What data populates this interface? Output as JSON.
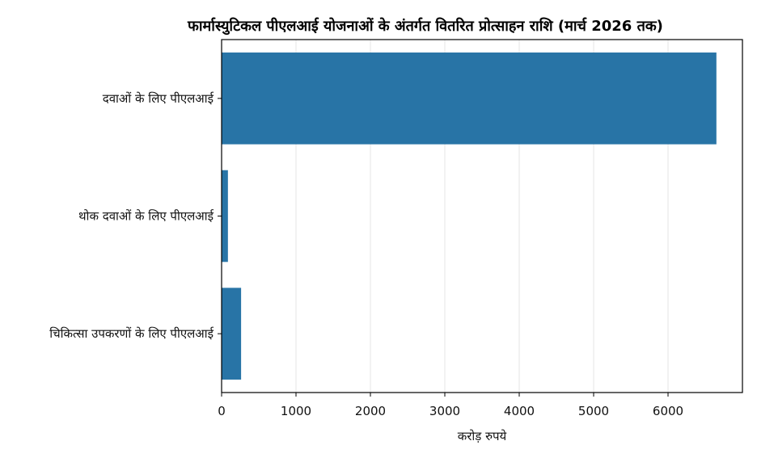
{
  "chart_data": {
    "type": "bar",
    "orientation": "horizontal",
    "title": "फार्मास्युटिकल पीएलआई योजनाओं के अंतर्गत वितरित प्रोत्साहन राशि (मार्च 2026 तक)",
    "xlabel": "करोड़ रुपये",
    "ylabel": "",
    "categories": [
      "दवाओं के लिए पीएलआई",
      "थोक दवाओं के लिए पीएलआई",
      "चिकित्सा उपकरणों के लिए पीएलआई"
    ],
    "values": [
      6650,
      85,
      262
    ],
    "xlim": [
      0,
      7000
    ],
    "xticks": [
      0,
      1000,
      2000,
      3000,
      4000,
      5000,
      6000
    ],
    "grid": "x",
    "bar_color": "#2874a6",
    "grid_color": "#e6e6e6"
  }
}
